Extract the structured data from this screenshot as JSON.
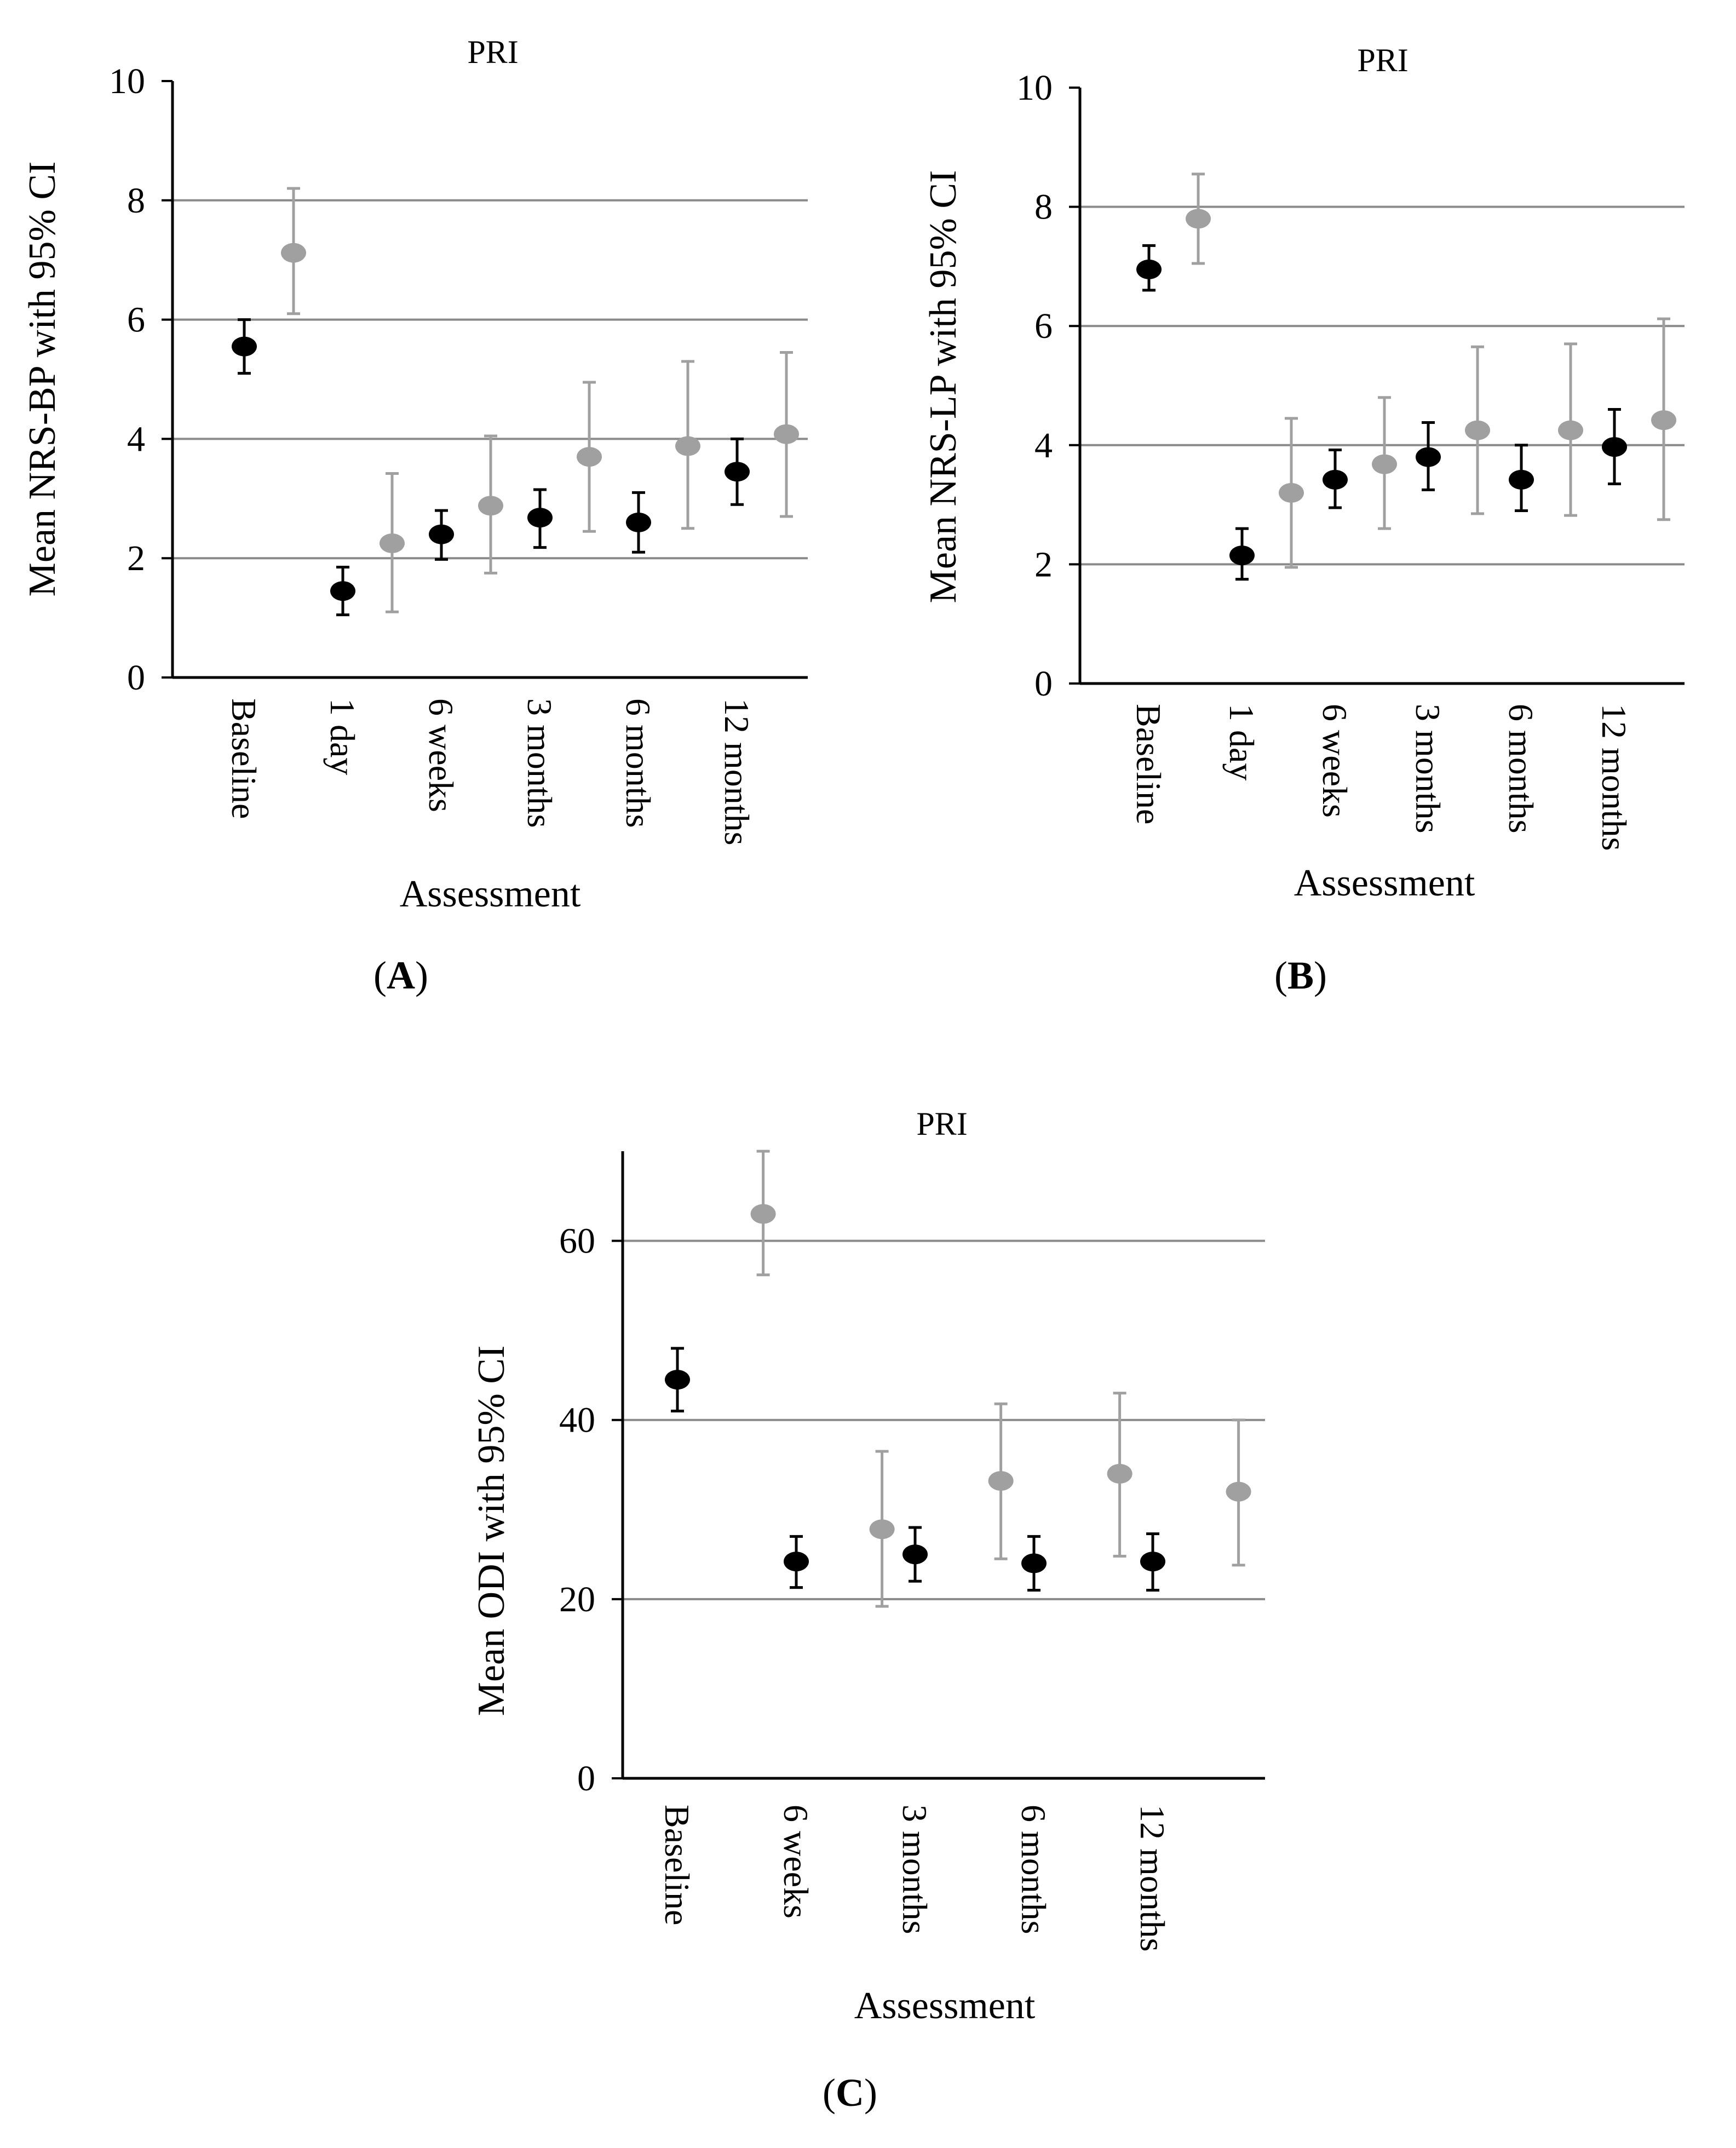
{
  "chart_data": [
    {
      "type": "scatter",
      "panel_label": "A",
      "title": "PRI",
      "ylabel": "Mean NRS-BP with 95% CI",
      "xlabel": "Assessment",
      "ylim": [
        0,
        10
      ],
      "yticks": [
        "0",
        "2",
        "4",
        "6",
        "8",
        "10"
      ],
      "gridlines": [
        2,
        4,
        6,
        8
      ],
      "categories": [
        "Baseline",
        "1 day",
        "6 weeks",
        "3 months",
        "6 months",
        "12 months"
      ],
      "series": [
        {
          "name": "black",
          "color": "#000000",
          "values": [
            5.55,
            1.45,
            2.4,
            2.68,
            2.6,
            3.45
          ],
          "lower": [
            5.1,
            1.05,
            1.98,
            2.18,
            2.1,
            2.9
          ],
          "upper": [
            6.0,
            1.85,
            2.8,
            3.15,
            3.1,
            4.0
          ]
        },
        {
          "name": "gray",
          "color": "#a0a0a0",
          "values": [
            7.12,
            2.25,
            2.88,
            3.7,
            3.88,
            4.08
          ],
          "lower": [
            6.1,
            1.1,
            1.75,
            2.45,
            2.5,
            2.7
          ],
          "upper": [
            8.2,
            3.42,
            4.05,
            4.95,
            5.3,
            5.45
          ]
        }
      ]
    },
    {
      "type": "scatter",
      "panel_label": "B",
      "title": "PRI",
      "ylabel": "Mean NRS-LP with 95% CI",
      "xlabel": "Assessment",
      "ylim": [
        0,
        10
      ],
      "yticks": [
        "0",
        "2",
        "4",
        "6",
        "8",
        "10"
      ],
      "gridlines": [
        2,
        4,
        6,
        8
      ],
      "categories": [
        "Baseline",
        "1 day",
        "6 weeks",
        "3 months",
        "6 months",
        "12 months"
      ],
      "series": [
        {
          "name": "black",
          "color": "#000000",
          "values": [
            6.95,
            2.15,
            3.42,
            3.8,
            3.42,
            3.97
          ],
          "lower": [
            6.6,
            1.75,
            2.95,
            3.25,
            2.9,
            3.35
          ],
          "upper": [
            7.35,
            2.6,
            3.92,
            4.38,
            4.0,
            4.6
          ]
        },
        {
          "name": "gray",
          "color": "#a0a0a0",
          "values": [
            7.8,
            3.2,
            3.68,
            4.25,
            4.25,
            4.42
          ],
          "lower": [
            7.05,
            1.95,
            2.6,
            2.85,
            2.82,
            2.75
          ],
          "upper": [
            8.55,
            4.45,
            4.8,
            5.65,
            5.7,
            6.12
          ]
        }
      ]
    },
    {
      "type": "scatter",
      "panel_label": "C",
      "title": "PRI",
      "ylabel": "Mean ODI with 95% CI",
      "xlabel": "Assessment",
      "ylim": [
        0,
        70
      ],
      "yticks": [
        "0",
        "20",
        "40",
        "60"
      ],
      "gridlines": [
        20,
        40,
        60
      ],
      "categories": [
        "Baseline",
        "6 weeks",
        "3 months",
        "6 months",
        "12 months"
      ],
      "series": [
        {
          "name": "black",
          "color": "#000000",
          "values": [
            44.5,
            24.2,
            25.0,
            24.0,
            24.2
          ],
          "lower": [
            41.0,
            21.3,
            22.0,
            21.0,
            21.0
          ],
          "upper": [
            48.0,
            27.0,
            28.0,
            27.0,
            27.3
          ]
        },
        {
          "name": "gray",
          "color": "#a0a0a0",
          "values": [
            63.0,
            27.8,
            33.2,
            34.0,
            32.0
          ],
          "lower": [
            56.2,
            19.2,
            24.5,
            24.8,
            23.8
          ],
          "upper": [
            70.0,
            36.5,
            41.8,
            43.0,
            40.0
          ]
        }
      ]
    }
  ]
}
